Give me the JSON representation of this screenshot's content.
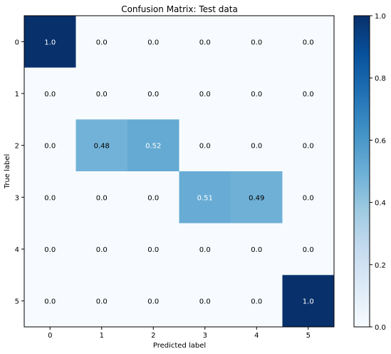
{
  "chart_data": {
    "type": "heatmap",
    "title": "Confusion Matrix: Test data",
    "xlabel": "Predicted label",
    "ylabel": "True label",
    "x_categories": [
      "0",
      "1",
      "2",
      "3",
      "4",
      "5"
    ],
    "y_categories": [
      "0",
      "1",
      "2",
      "3",
      "4",
      "5"
    ],
    "values": [
      [
        1.0,
        0.0,
        0.0,
        0.0,
        0.0,
        0.0
      ],
      [
        0.0,
        0.0,
        0.0,
        0.0,
        0.0,
        0.0
      ],
      [
        0.0,
        0.48,
        0.52,
        0.0,
        0.0,
        0.0
      ],
      [
        0.0,
        0.0,
        0.0,
        0.51,
        0.49,
        0.0
      ],
      [
        0.0,
        0.0,
        0.0,
        0.0,
        0.0,
        0.0
      ],
      [
        0.0,
        0.0,
        0.0,
        0.0,
        0.0,
        1.0
      ]
    ],
    "cell_labels": [
      [
        "1.0",
        "0.0",
        "0.0",
        "0.0",
        "0.0",
        "0.0"
      ],
      [
        "0.0",
        "0.0",
        "0.0",
        "0.0",
        "0.0",
        "0.0"
      ],
      [
        "0.0",
        "0.48",
        "0.52",
        "0.0",
        "0.0",
        "0.0"
      ],
      [
        "0.0",
        "0.0",
        "0.0",
        "0.51",
        "0.49",
        "0.0"
      ],
      [
        "0.0",
        "0.0",
        "0.0",
        "0.0",
        "0.0",
        "0.0"
      ],
      [
        "0.0",
        "0.0",
        "0.0",
        "0.0",
        "0.0",
        "1.0"
      ]
    ],
    "colormap": "Blues",
    "colormap_stops": [
      "#f7fbff",
      "#deebf7",
      "#c6dbef",
      "#9ecae1",
      "#6baed6",
      "#4292c6",
      "#2171b5",
      "#08519c",
      "#08306b"
    ],
    "colorbar": {
      "vmin": 0.0,
      "vmax": 1.0,
      "ticks": [
        0.0,
        0.2,
        0.4,
        0.6,
        0.8,
        1.0
      ],
      "tick_labels": [
        "0.0",
        "0.2",
        "0.4",
        "0.6",
        "0.8",
        "1.0"
      ]
    },
    "text_threshold": 0.5,
    "grid": false
  }
}
